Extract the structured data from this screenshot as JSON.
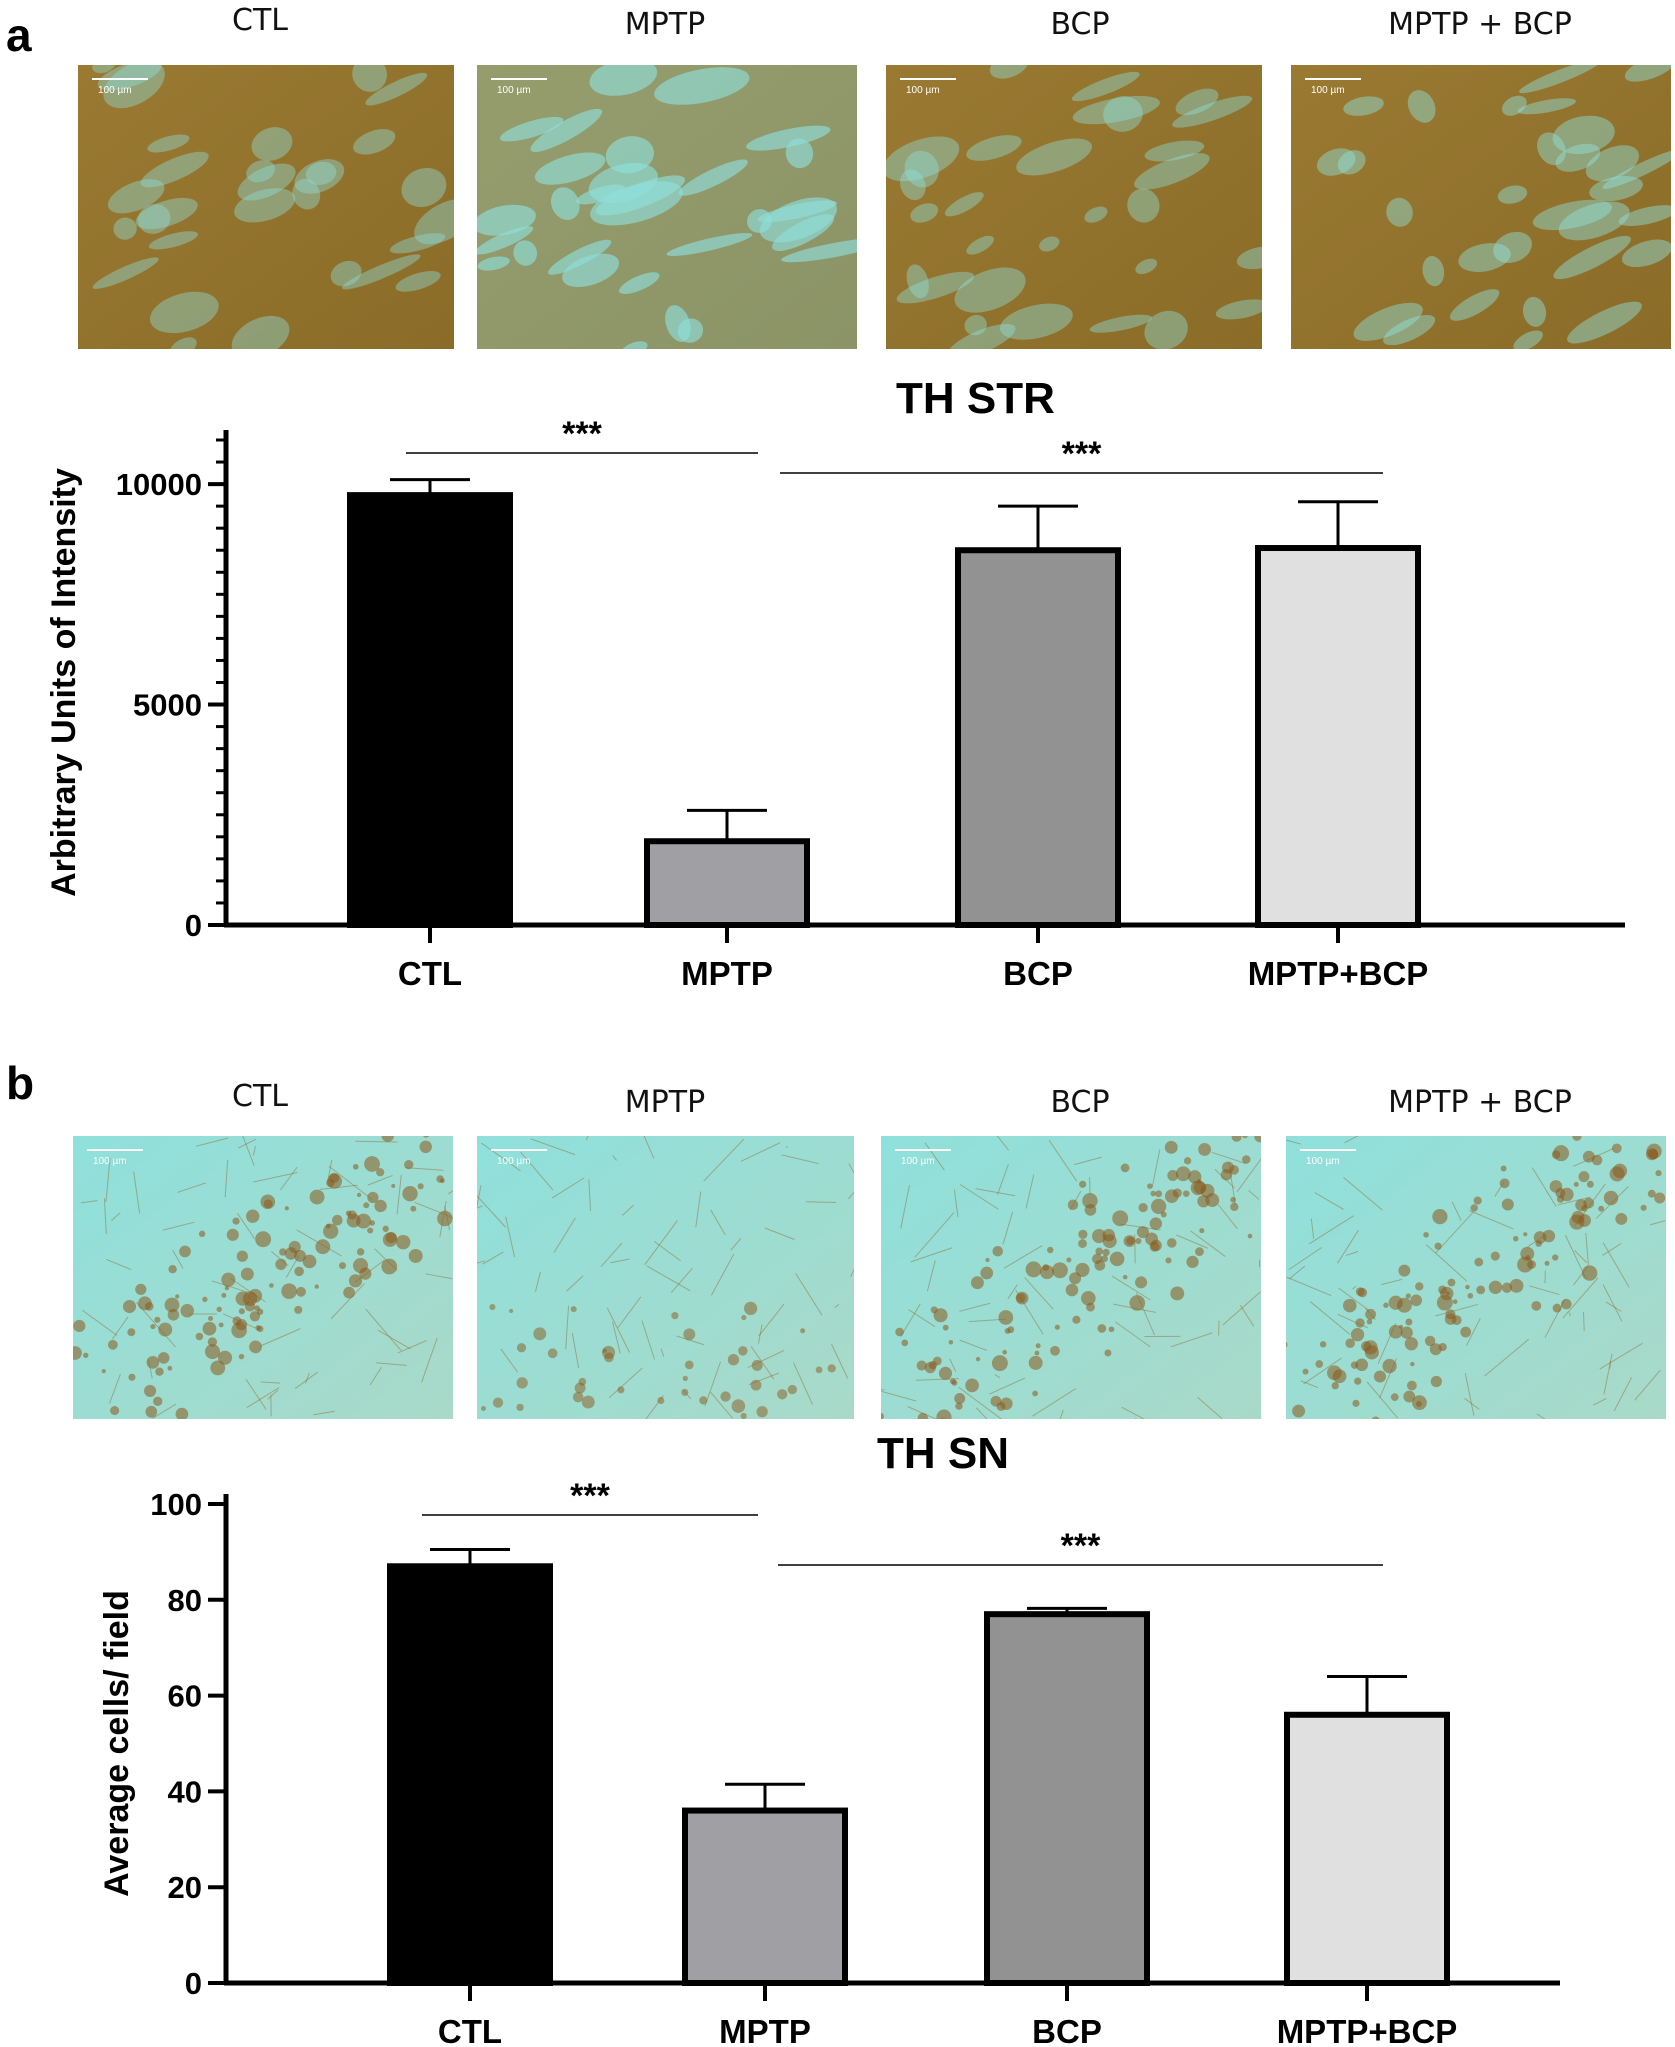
{
  "panels": [
    {
      "letter": "a",
      "image_labels": [
        "CTL",
        "MPTP",
        "BCP",
        "MPTP + BCP"
      ],
      "scalebar_label": "100 µm"
    },
    {
      "letter": "b",
      "image_labels": [
        "CTL",
        "MPTP",
        "BCP",
        "MPTP + BCP"
      ],
      "scalebar_label": "100 µm"
    }
  ],
  "colors": {
    "stain_brown": "#9a7a32",
    "stain_cyan": "#8fe0dc",
    "bar_ctl": "#000000",
    "bar_mptp": "#a0a0a4",
    "bar_bcp": "#929292",
    "bar_mptp_bcp": "#e0e0e0"
  },
  "chart_data": [
    {
      "type": "bar",
      "title": "TH STR",
      "xlabel": "",
      "ylabel": "Arbitrary Units of Intensity",
      "categories": [
        "CTL",
        "MPTP",
        "BCP",
        "MPTP+BCP"
      ],
      "values": [
        9750,
        1900,
        8500,
        8550
      ],
      "errors": [
        350,
        700,
        1000,
        1050
      ],
      "ylim": [
        0,
        11000
      ],
      "yticks": [
        0,
        5000,
        10000
      ],
      "minor_tick_step": 500,
      "significance": [
        {
          "from": "CTL",
          "to": "MPTP",
          "label": "***"
        },
        {
          "from": "MPTP",
          "to": "MPTP+BCP",
          "label": "***"
        }
      ],
      "grid": false,
      "legend": "none"
    },
    {
      "type": "bar",
      "title": "TH SN",
      "xlabel": "",
      "ylabel": "Average cells/ field",
      "categories": [
        "CTL",
        "MPTP",
        "BCP",
        "MPTP+BCP"
      ],
      "values": [
        87,
        36,
        77,
        56
      ],
      "errors": [
        3.5,
        5.5,
        1.2,
        8
      ],
      "ylim": [
        0,
        100
      ],
      "yticks": [
        0,
        20,
        40,
        60,
        80,
        100
      ],
      "minor_tick_step": 0,
      "significance": [
        {
          "from": "CTL",
          "to": "MPTP",
          "label": "***"
        },
        {
          "from": "MPTP",
          "to": "MPTP+BCP",
          "label": "***"
        }
      ],
      "grid": false,
      "legend": "none"
    }
  ]
}
